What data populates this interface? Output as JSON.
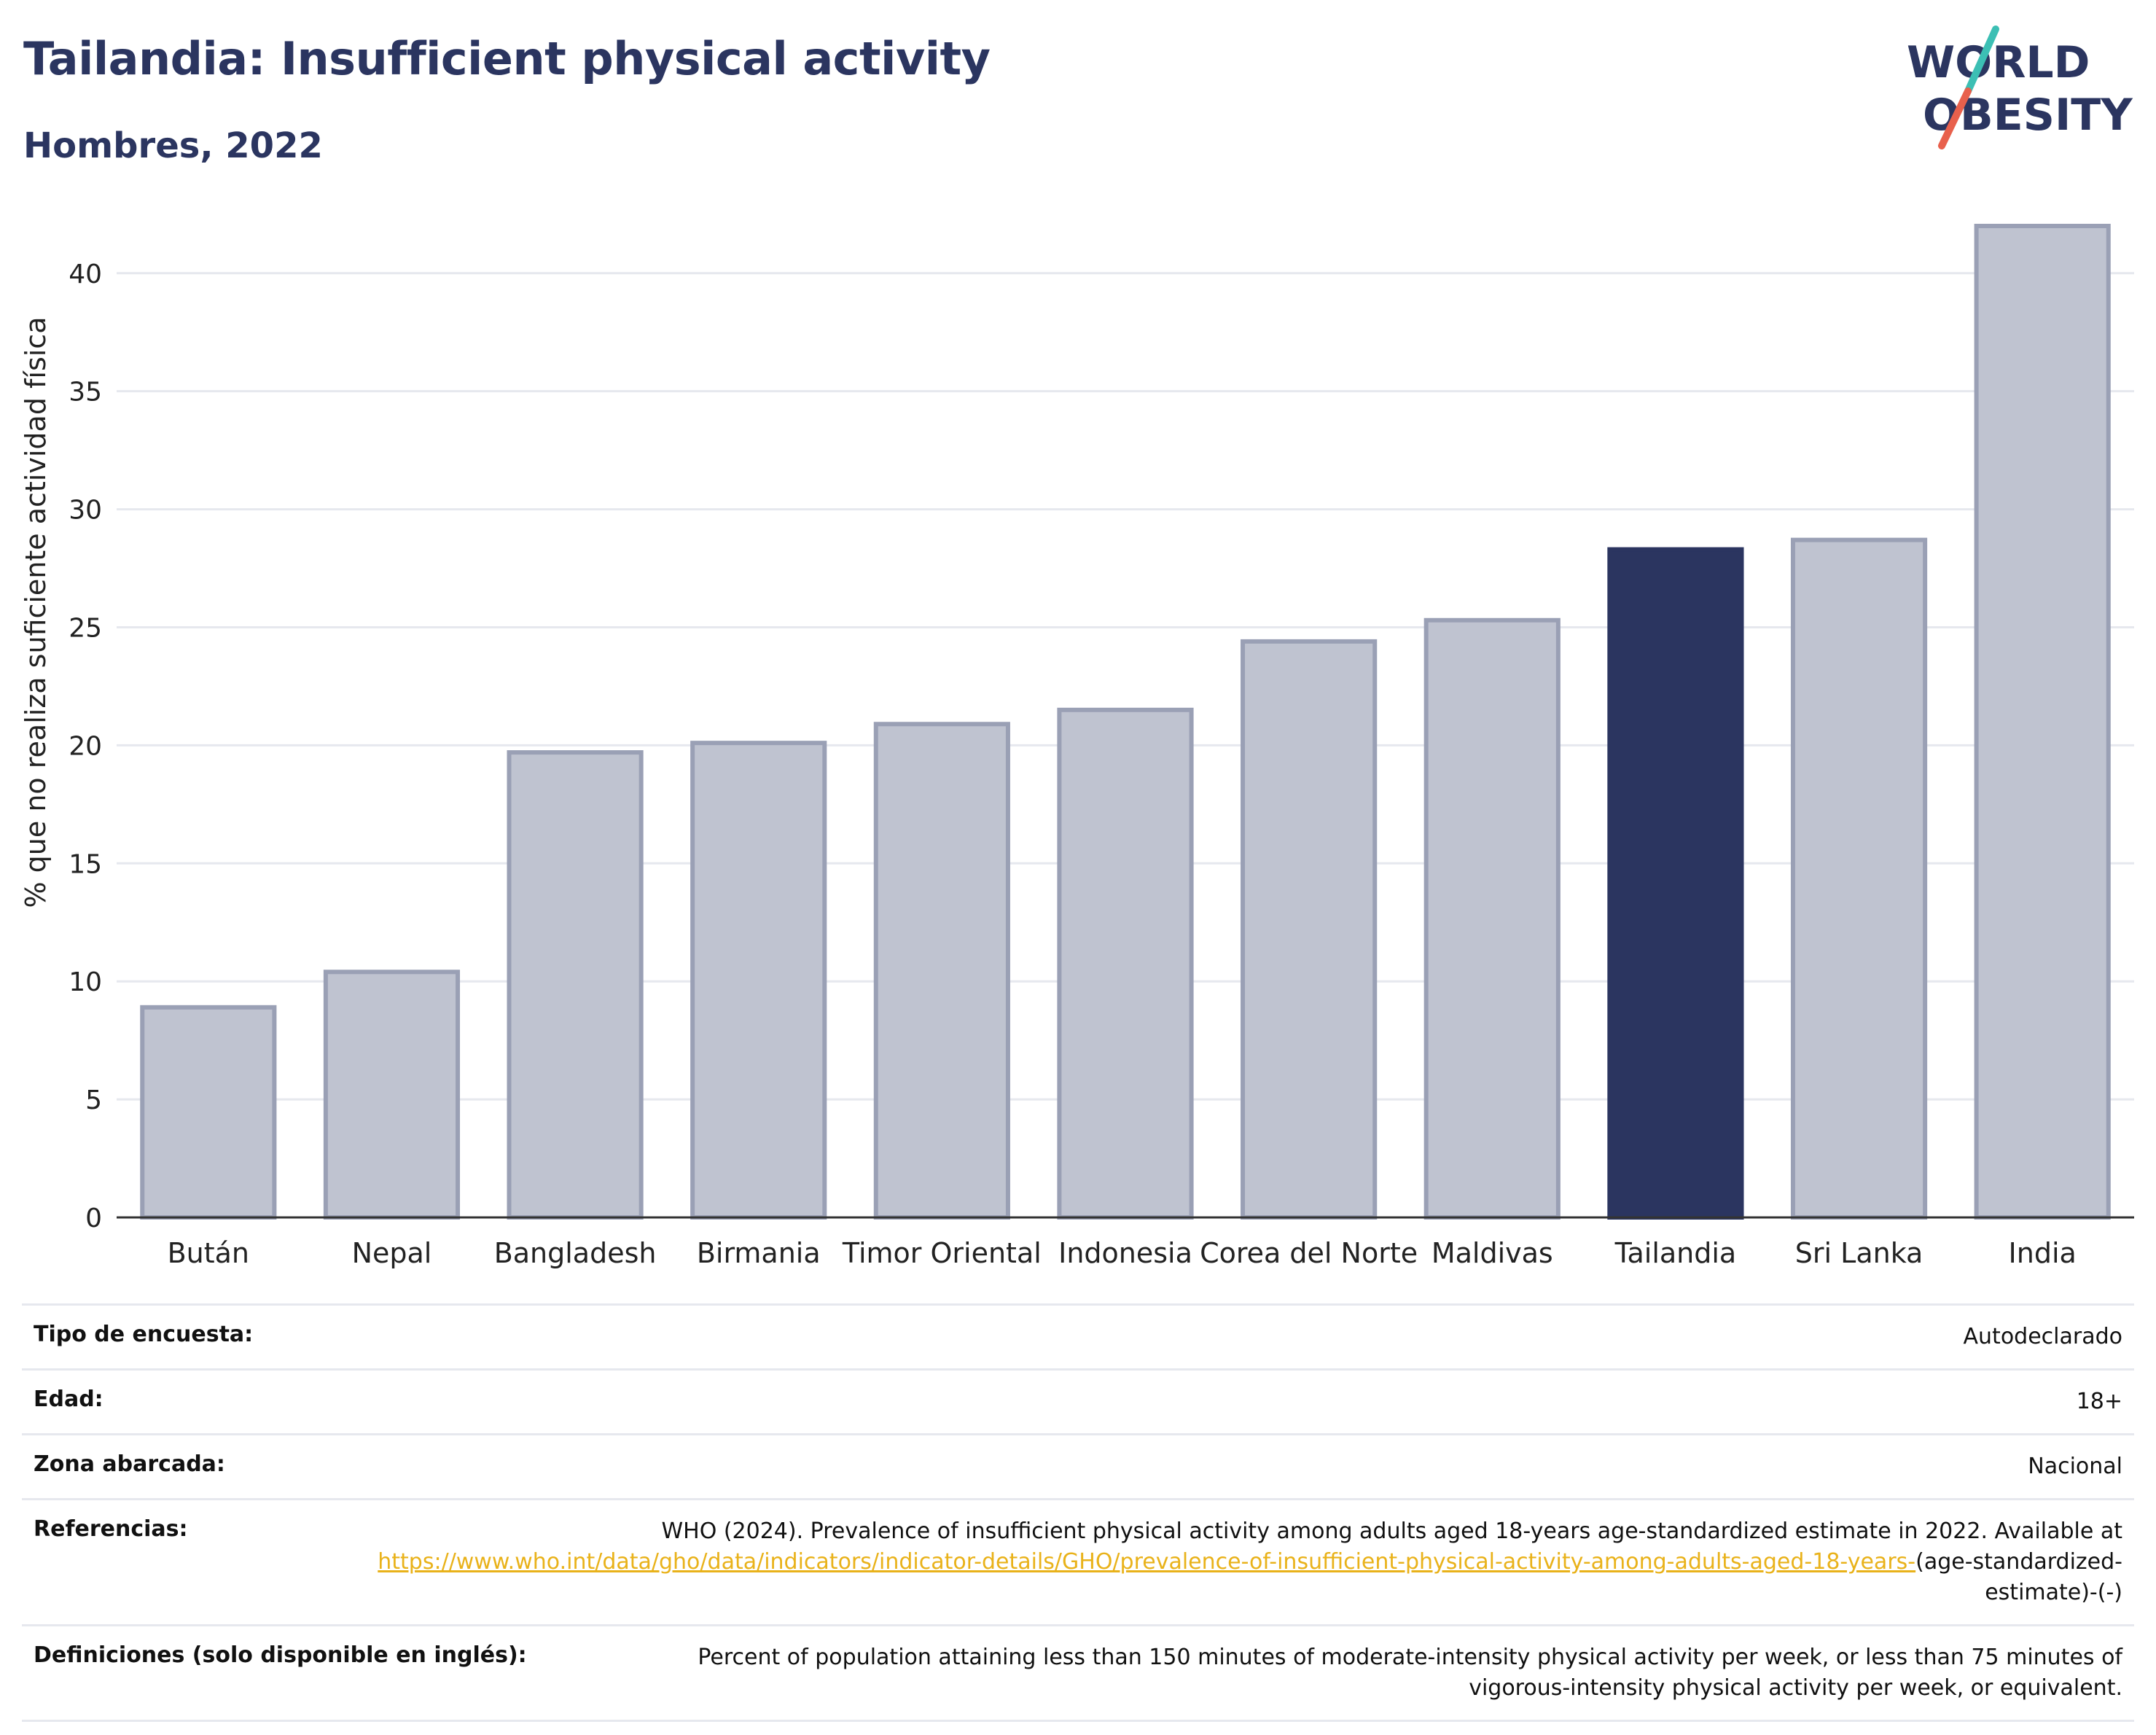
{
  "header": {
    "title": "Tailandia: Insufficient physical activity",
    "subtitle": "Hombres, 2022"
  },
  "logo": {
    "line1": "WORLD",
    "line2": "OBESITY",
    "colors": {
      "text": "#2b3560",
      "slash_top": "#3cbfb4",
      "slash_bottom": "#e8604c"
    }
  },
  "colors": {
    "highlight": "#2b3560",
    "bar_fill": "#bfc3d0",
    "bar_stroke": "#9aa0b5",
    "gridline": "#e6e8ee",
    "axis": "#333333"
  },
  "chart_data": {
    "type": "bar",
    "ylabel": "% que no realiza suficiente actividad física",
    "ylim": [
      0,
      42
    ],
    "yticks": [
      0,
      5,
      10,
      15,
      20,
      25,
      30,
      35,
      40
    ],
    "categories": [
      "Bután",
      "Nepal",
      "Bangladesh",
      "Birmania",
      "Timor Oriental",
      "Indonesia",
      "Corea del Norte",
      "Maldivas",
      "Tailandia",
      "Sri Lanka",
      "India"
    ],
    "values": [
      8.9,
      10.4,
      19.7,
      20.1,
      20.9,
      21.5,
      24.4,
      25.3,
      28.3,
      28.7,
      42.0
    ],
    "highlight": "Tailandia",
    "grid": true
  },
  "info": {
    "rows": [
      {
        "label": "Tipo de encuesta:",
        "value": "Autodeclarado"
      },
      {
        "label": "Edad:",
        "value": "18+"
      },
      {
        "label": "Zona abarcada:",
        "value": "Nacional"
      }
    ],
    "references": {
      "label": "Referencias:",
      "text_before": "WHO (2024). Prevalence of insufficient physical activity among adults aged 18-years age-standardized estimate in 2022. Available at",
      "link": "https://www.who.int/data/gho/data/indicators/indicator-details/GHO/prevalence-of-insufficient-physical-activity-among-adults-aged-18-years-",
      "text_after": "(age-standardized-estimate)-(-)"
    },
    "definitions": {
      "label": "Definiciones (solo disponible en inglés):",
      "value": "Percent of population attaining less than 150 minutes of moderate-intensity physical activity per week, or less than 75 minutes of vigorous-intensity physical activity per week, or equivalent."
    }
  }
}
